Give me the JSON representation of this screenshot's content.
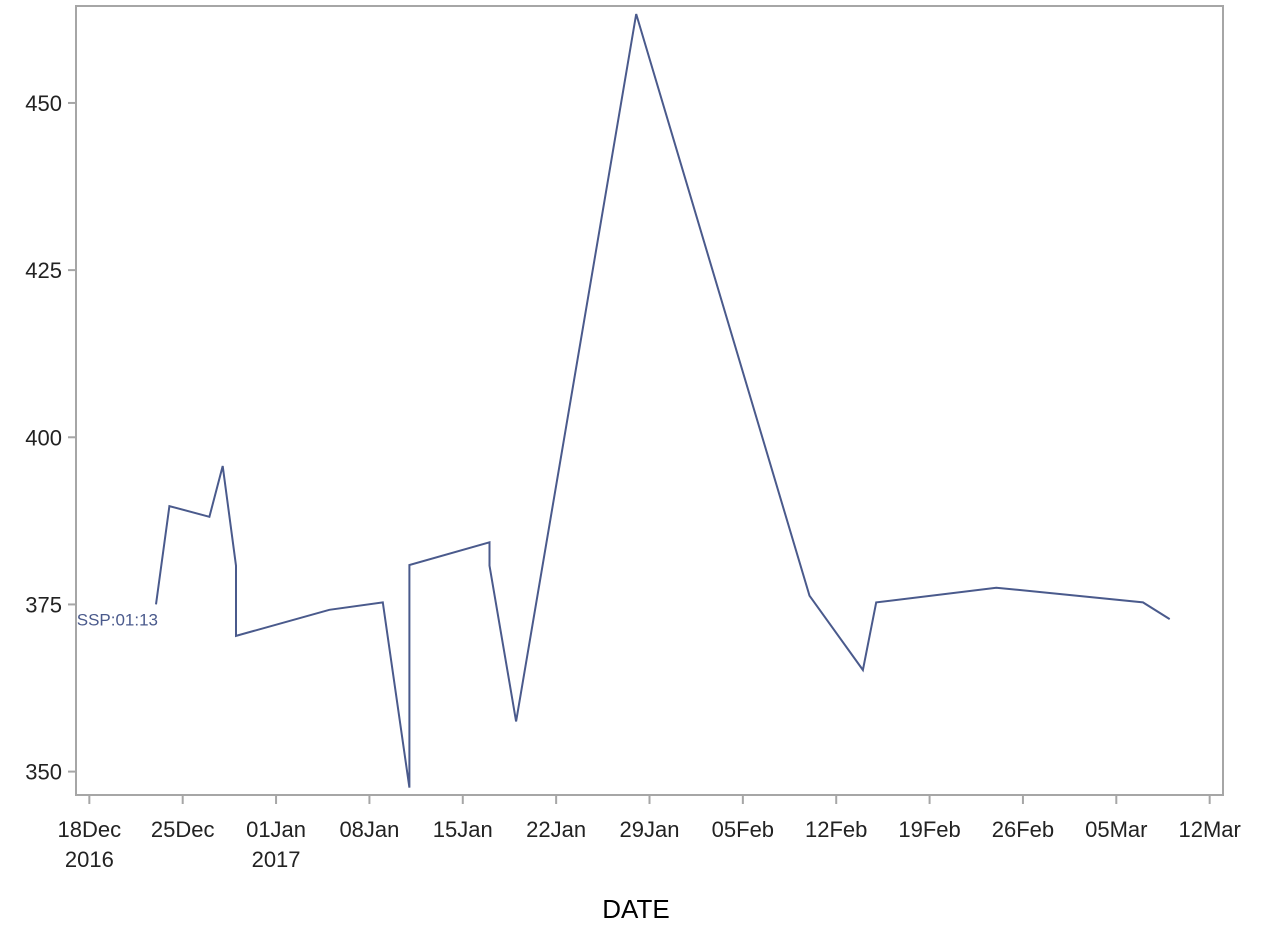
{
  "chart_data": {
    "type": "line",
    "title": "",
    "xlabel": "DATE",
    "ylabel": "",
    "xlim": [
      "2016-12-17",
      "2017-03-13"
    ],
    "ylim": [
      346.5,
      464.5
    ],
    "grid": false,
    "x_ticks": [
      {
        "date": "2016-12-18",
        "label": "18Dec",
        "label2": "2016"
      },
      {
        "date": "2016-12-25",
        "label": "25Dec",
        "label2": ""
      },
      {
        "date": "2017-01-01",
        "label": "01Jan",
        "label2": "2017"
      },
      {
        "date": "2017-01-08",
        "label": "08Jan",
        "label2": ""
      },
      {
        "date": "2017-01-15",
        "label": "15Jan",
        "label2": ""
      },
      {
        "date": "2017-01-22",
        "label": "22Jan",
        "label2": ""
      },
      {
        "date": "2017-01-29",
        "label": "29Jan",
        "label2": ""
      },
      {
        "date": "2017-02-05",
        "label": "05Feb",
        "label2": ""
      },
      {
        "date": "2017-02-12",
        "label": "12Feb",
        "label2": ""
      },
      {
        "date": "2017-02-19",
        "label": "19Feb",
        "label2": ""
      },
      {
        "date": "2017-02-26",
        "label": "26Feb",
        "label2": ""
      },
      {
        "date": "2017-03-05",
        "label": "05Mar",
        "label2": ""
      },
      {
        "date": "2017-03-12",
        "label": "12Mar",
        "label2": ""
      }
    ],
    "y_ticks": [
      350,
      375,
      400,
      425,
      450
    ],
    "series": [
      {
        "name": "",
        "color": "#4a5a8c",
        "label": "SSP:01:13",
        "points": [
          {
            "x": "2016-12-23",
            "y": 375
          },
          {
            "x": "2016-12-24",
            "y": 389.7
          },
          {
            "x": "2016-12-27",
            "y": 388.1
          },
          {
            "x": "2016-12-28",
            "y": 395.7
          },
          {
            "x": "2016-12-29",
            "y": 380.8
          },
          {
            "x": "2016-12-29",
            "y": 370.3
          },
          {
            "x": "2017-01-05",
            "y": 374.2
          },
          {
            "x": "2017-01-09",
            "y": 375.3
          },
          {
            "x": "2017-01-11",
            "y": 347.6
          },
          {
            "x": "2017-01-11",
            "y": 380.9
          },
          {
            "x": "2017-01-17",
            "y": 384.3
          },
          {
            "x": "2017-01-17",
            "y": 380.8
          },
          {
            "x": "2017-01-19",
            "y": 357.5
          },
          {
            "x": "2017-01-28",
            "y": 463.3
          },
          {
            "x": "2017-02-10",
            "y": 376.3
          },
          {
            "x": "2017-02-14",
            "y": 365.2
          },
          {
            "x": "2017-02-15",
            "y": 375.3
          },
          {
            "x": "2017-02-24",
            "y": 377.5
          },
          {
            "x": "2017-03-07",
            "y": 375.3
          },
          {
            "x": "2017-03-09",
            "y": 372.8
          }
        ]
      }
    ]
  }
}
